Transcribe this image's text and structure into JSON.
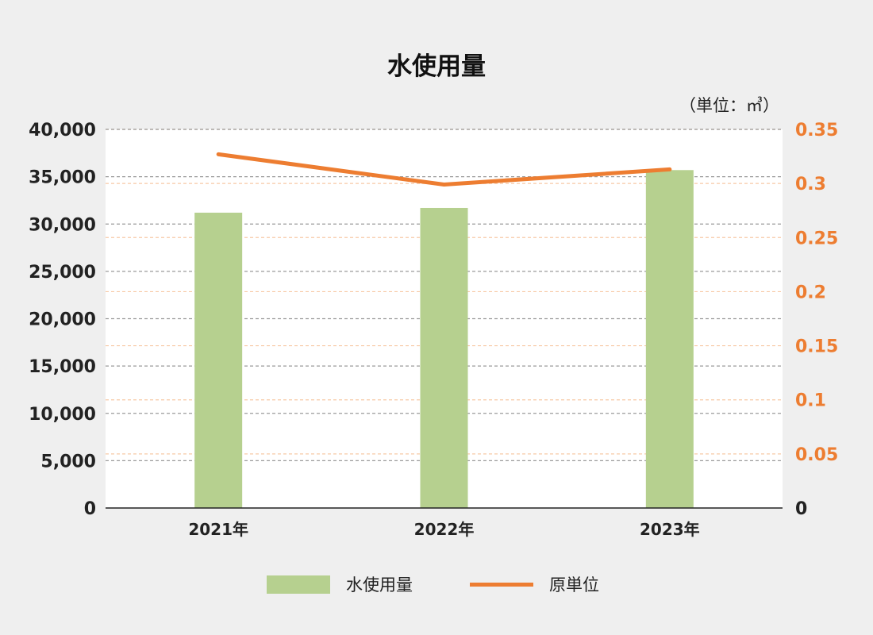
{
  "title": "水使用量",
  "unit": "（単位：㎥）",
  "colors": {
    "bar": "#b6d08f",
    "line": "#ed7d31",
    "grid": "#9a9a9a",
    "plot_bg": "#ffffff"
  },
  "legend": [
    {
      "label": "水使用量",
      "type": "bar"
    },
    {
      "label": "原単位",
      "type": "line"
    }
  ],
  "chart_data": {
    "type": "bar",
    "title": "水使用量",
    "categories": [
      "2021年",
      "2022年",
      "2023年"
    ],
    "series": [
      {
        "name": "水使用量",
        "type": "bar",
        "axis": "left",
        "values": [
          31200,
          31700,
          35700
        ]
      },
      {
        "name": "原単位",
        "type": "line",
        "axis": "right",
        "values": [
          0.327,
          0.299,
          0.313
        ]
      }
    ],
    "y_left": {
      "ylim": [
        0,
        40000
      ],
      "ticks": [
        "0",
        "5,000",
        "10,000",
        "15,000",
        "20,000",
        "25,000",
        "30,000",
        "35,000",
        "40,000"
      ]
    },
    "y_right": {
      "ylim": [
        0,
        0.35
      ],
      "ticks": [
        "0",
        "0.05",
        "0.1",
        "0.15",
        "0.2",
        "0.25",
        "0.3",
        "0.35"
      ]
    },
    "grid": true,
    "legend_position": "bottom"
  }
}
